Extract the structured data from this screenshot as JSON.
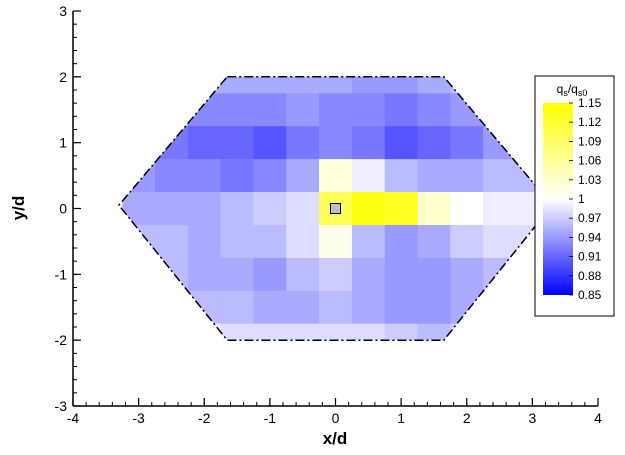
{
  "chart_data": {
    "type": "heatmap",
    "title": "",
    "xlabel": "x/d",
    "ylabel": "y/d",
    "xlim": [
      -4,
      4
    ],
    "ylim": [
      -3,
      3
    ],
    "x_ticks": [
      -4,
      -3,
      -2,
      -1,
      0,
      1,
      2,
      3,
      4
    ],
    "y_ticks": [
      -3,
      -2,
      -1,
      0,
      1,
      2,
      3
    ],
    "grid": false,
    "cell_size": [
      0.5,
      0.5
    ],
    "domain_outline": [
      [
        -1.65,
        2.0
      ],
      [
        1.65,
        2.0
      ],
      [
        3.3,
        0.05
      ],
      [
        1.65,
        -2.0
      ],
      [
        -1.65,
        -2.0
      ],
      [
        -3.3,
        0.05
      ]
    ],
    "marker": {
      "x": 0.0,
      "y": 0.0,
      "shape": "square"
    },
    "colorbar": {
      "title_main": "q",
      "title_main_sub": "s",
      "title_ref": "q",
      "title_ref_sub": "s0",
      "min": 0.85,
      "max": 1.15,
      "tick_labels": [
        "1.15",
        "1.12",
        "1.09",
        "1.06",
        "1.03",
        "1",
        "0.97",
        "0.94",
        "0.91",
        "0.88",
        "0.85"
      ],
      "placement": "right"
    },
    "x_centers": [
      -3.0,
      -2.5,
      -2.0,
      -1.5,
      -1.0,
      -0.5,
      0.0,
      0.5,
      1.0,
      1.5,
      2.0,
      2.5,
      3.0
    ],
    "y_centers": [
      2.0,
      1.5,
      1.0,
      0.5,
      0.0,
      -0.5,
      -1.0,
      -1.5,
      -2.0
    ],
    "values": [
      [
        0.96,
        0.96,
        0.95,
        0.95,
        0.95,
        0.95,
        0.95,
        0.94,
        0.94,
        0.95,
        0.96,
        0.96,
        0.96
      ],
      [
        0.94,
        0.94,
        0.93,
        0.93,
        0.93,
        0.94,
        0.93,
        0.93,
        0.92,
        0.93,
        0.94,
        0.95,
        0.95
      ],
      [
        0.92,
        0.92,
        0.91,
        0.91,
        0.9,
        0.92,
        0.93,
        0.92,
        0.9,
        0.91,
        0.92,
        0.94,
        0.95
      ],
      [
        0.94,
        0.93,
        0.93,
        0.92,
        0.93,
        0.95,
        1.02,
        0.99,
        0.96,
        0.95,
        0.95,
        0.96,
        0.96
      ],
      [
        0.95,
        0.95,
        0.95,
        0.96,
        0.97,
        0.98,
        1.1,
        1.14,
        1.13,
        1.03,
        1.0,
        0.99,
        0.99
      ],
      [
        0.96,
        0.96,
        0.95,
        0.96,
        0.96,
        0.98,
        1.01,
        0.96,
        0.94,
        0.95,
        0.97,
        0.98,
        0.98
      ],
      [
        0.97,
        0.96,
        0.95,
        0.95,
        0.94,
        0.96,
        0.97,
        0.95,
        0.94,
        0.94,
        0.95,
        0.96,
        0.97
      ],
      [
        0.98,
        0.97,
        0.96,
        0.96,
        0.95,
        0.95,
        0.96,
        0.95,
        0.94,
        0.94,
        0.95,
        0.96,
        0.97
      ],
      [
        0.99,
        0.99,
        0.99,
        0.98,
        0.98,
        0.98,
        0.98,
        0.98,
        0.97,
        0.96,
        0.97,
        0.97,
        0.97
      ]
    ]
  }
}
